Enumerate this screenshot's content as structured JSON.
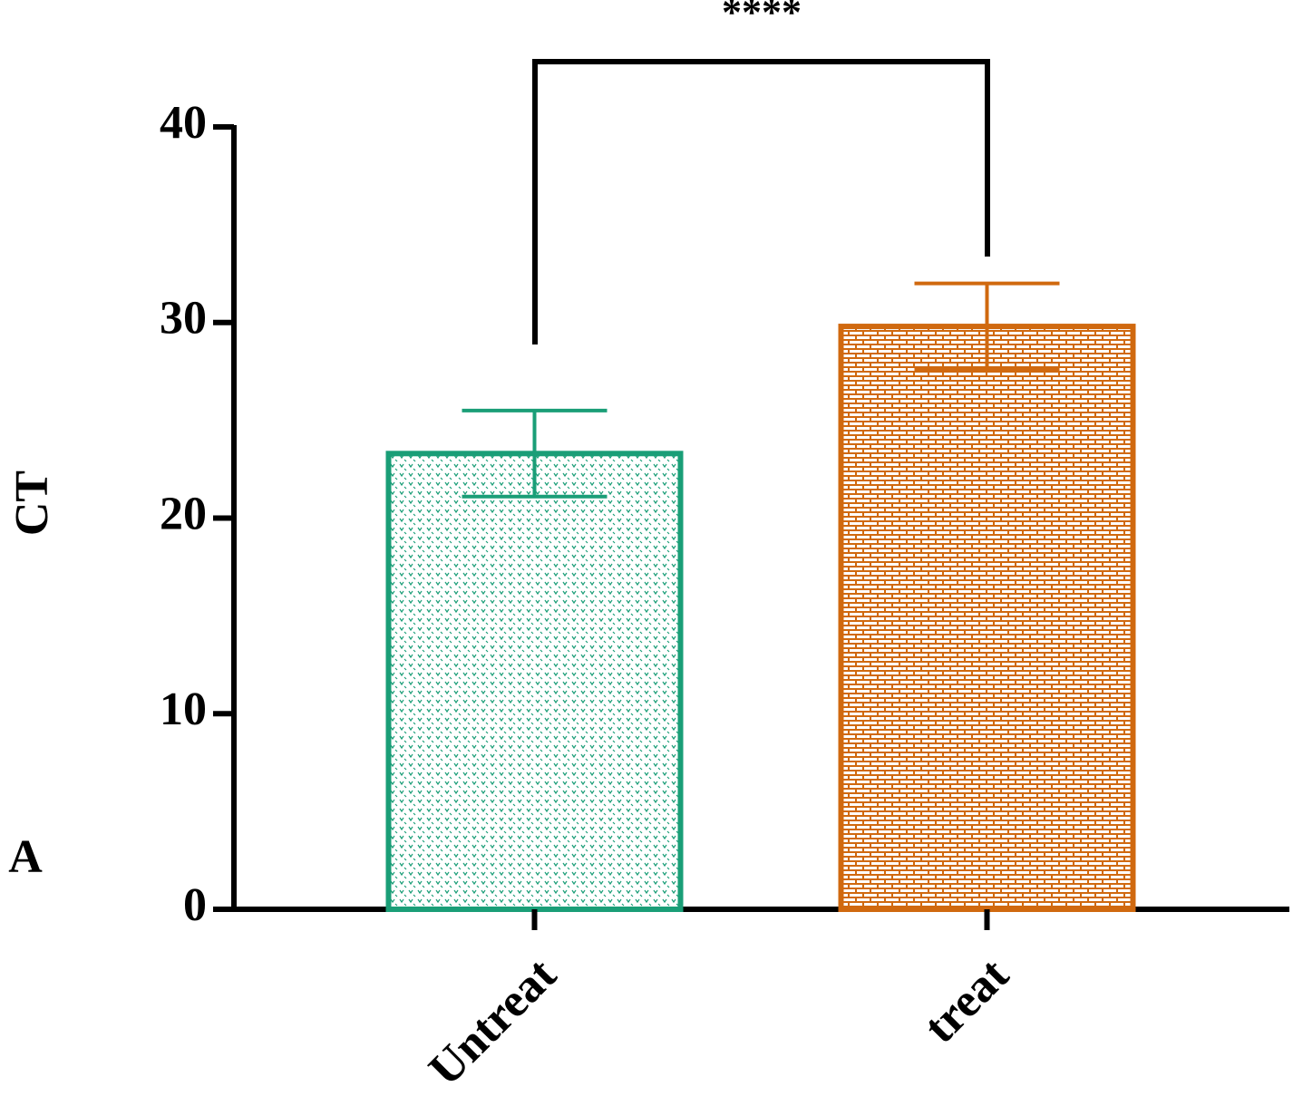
{
  "chart_data": {
    "type": "bar",
    "panel_label": "A",
    "y_label": "CT",
    "categories": [
      "Untreat",
      "treat"
    ],
    "values": [
      23.3,
      29.8
    ],
    "errors": [
      2.2,
      2.2
    ],
    "colors": [
      "#1a9e77",
      "#d0690f"
    ],
    "ylim": [
      0,
      40
    ],
    "yticks": [
      0,
      10,
      20,
      30,
      40
    ],
    "annotation": "****"
  }
}
